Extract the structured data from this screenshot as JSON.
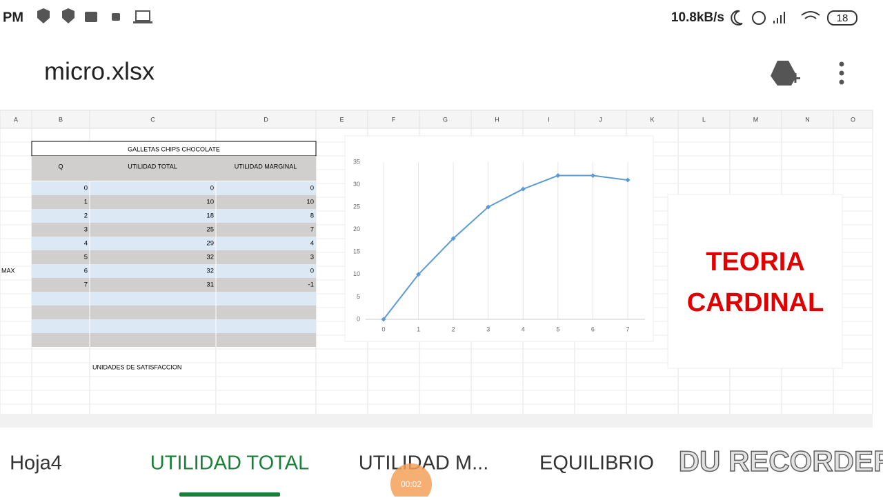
{
  "status_bar": {
    "time": "PM",
    "speed": "10.8kB/s",
    "battery": "18"
  },
  "header": {
    "title": "micro.xlsx"
  },
  "columns": [
    "A",
    "B",
    "C",
    "D",
    "E",
    "F",
    "G",
    "H",
    "I",
    "J",
    "K",
    "L",
    "M",
    "N",
    "O"
  ],
  "table": {
    "title": "GALLETAS CHIPS CHOCOLATE",
    "headers": [
      "Q",
      "UTILIDAD TOTAL",
      "UTILIDAD MARGINAL"
    ],
    "rows": [
      [
        0,
        0,
        0
      ],
      [
        1,
        10,
        10
      ],
      [
        2,
        18,
        8
      ],
      [
        3,
        25,
        7
      ],
      [
        4,
        29,
        4
      ],
      [
        5,
        32,
        3
      ],
      [
        6,
        32,
        0
      ],
      [
        7,
        31,
        -1
      ]
    ]
  },
  "side_label": "MAX",
  "note": "UNIDADES DE SATISFACCION",
  "chart": {
    "type": "line",
    "x": [
      0,
      1,
      2,
      3,
      4,
      5,
      6,
      7
    ],
    "values": [
      0,
      10,
      18,
      25,
      29,
      32,
      32,
      31
    ],
    "xlim": [
      0,
      7
    ],
    "ylim": [
      0,
      35
    ],
    "yticks": [
      0,
      5,
      10,
      15,
      20,
      25,
      30,
      35
    ],
    "color": "#5b9bd5",
    "grid": true
  },
  "text_box": {
    "lines": [
      "TEORIA",
      "CARDINAL"
    ]
  },
  "tabs": {
    "items": [
      "Hoja4",
      "UTILIDAD TOTAL",
      "UTILIDAD M...",
      "EQUILIBRIO"
    ],
    "active": 1
  },
  "watermark": "DU RECORDER",
  "timer": "00:02"
}
